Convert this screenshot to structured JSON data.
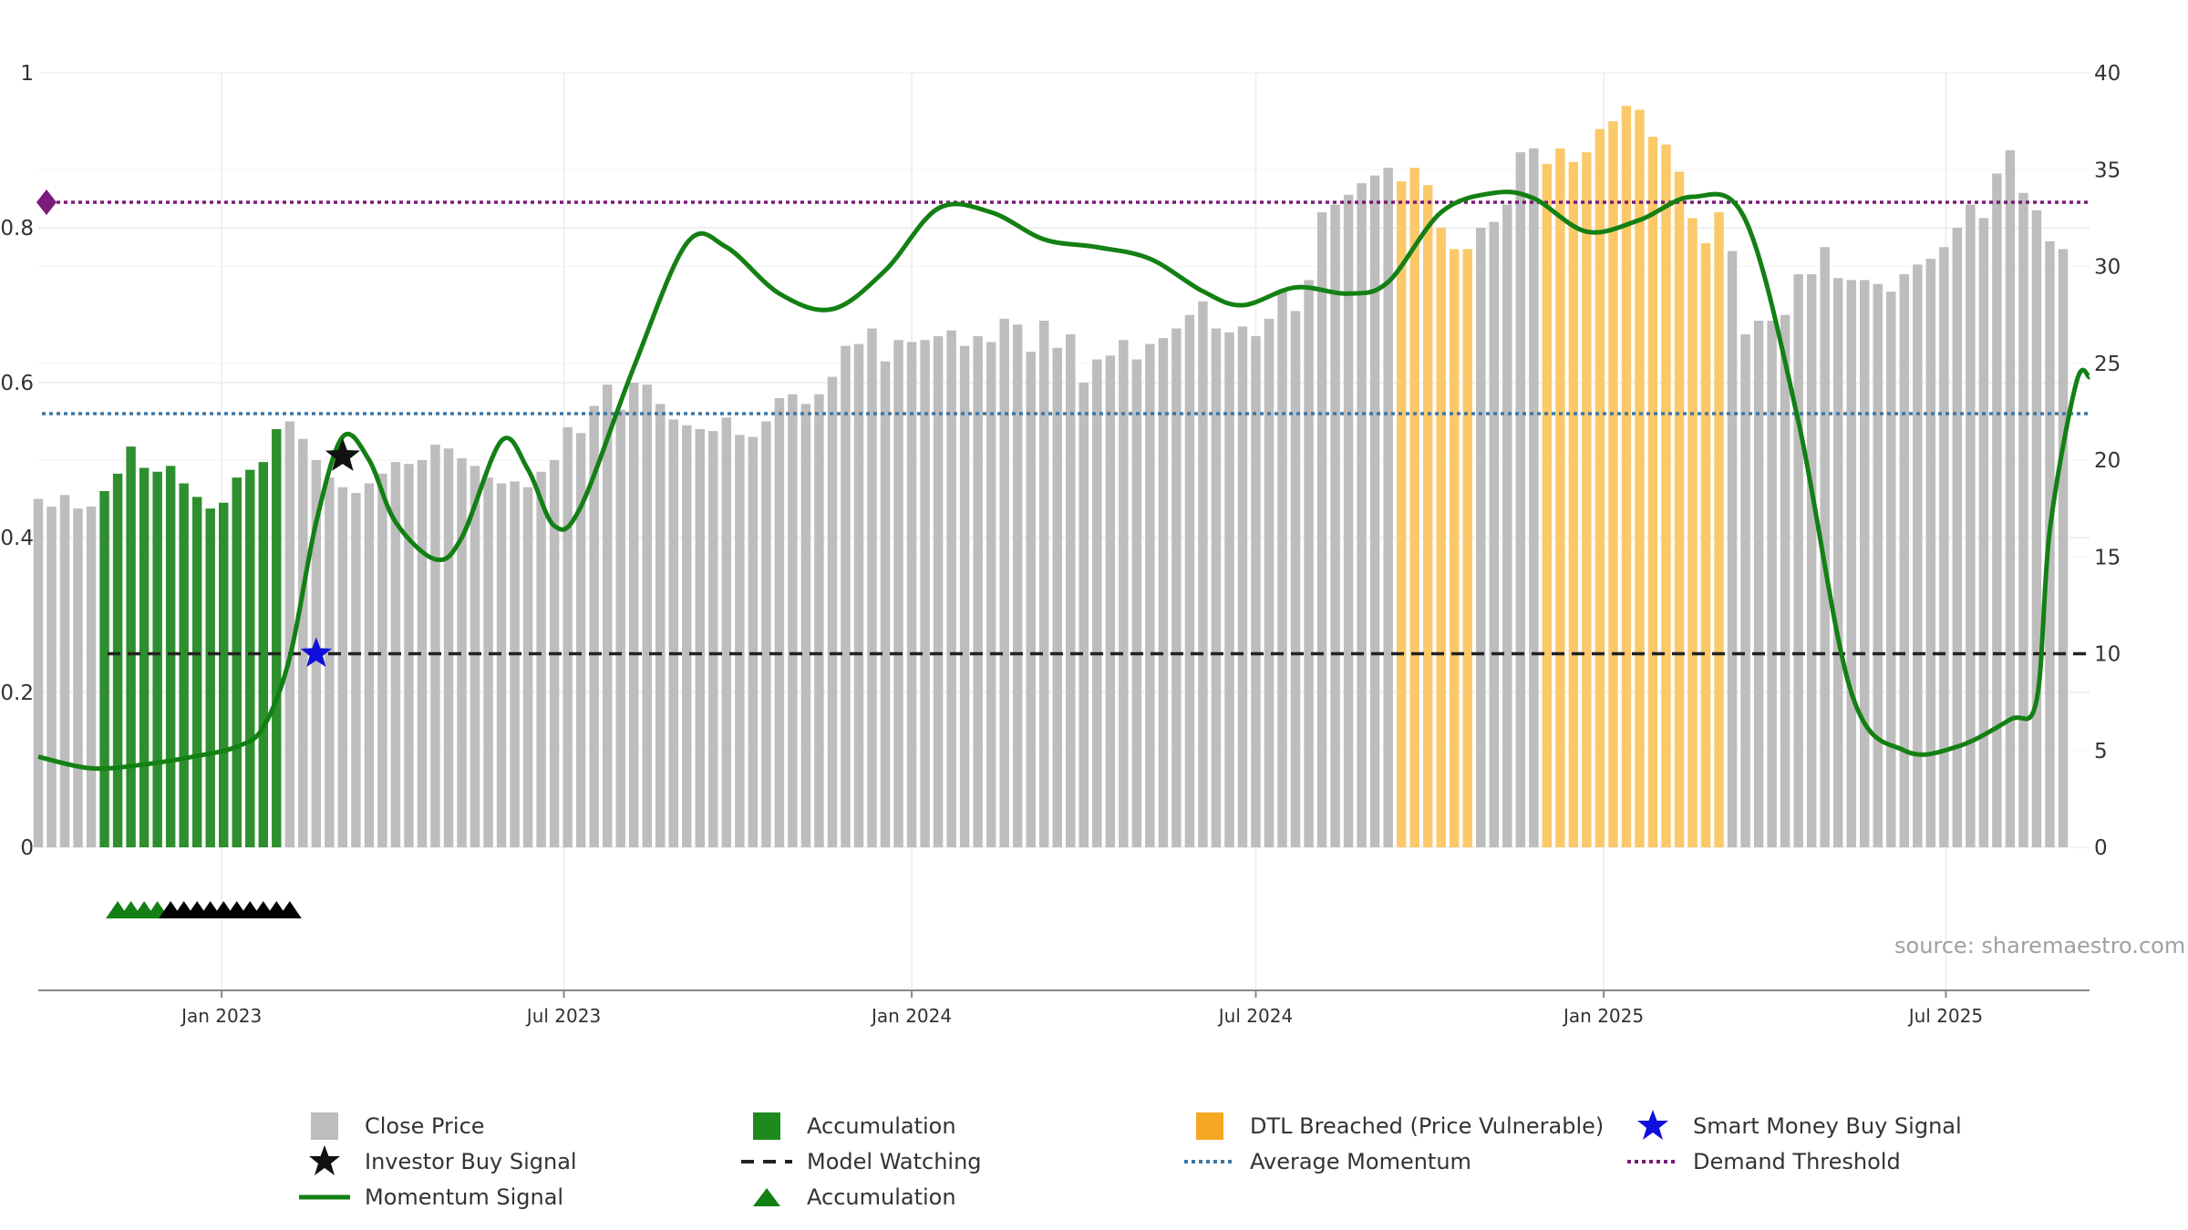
{
  "chart_data": {
    "type": "bar+line",
    "source": "source: sharemaestro.com",
    "left_axis": {
      "ylim": [
        0,
        1
      ],
      "ticks": [
        0,
        0.2,
        0.4,
        0.6,
        0.8,
        1
      ],
      "tick_labels": [
        "0",
        "0.2",
        "0.4",
        "0.6",
        "0.8",
        "1"
      ]
    },
    "right_axis": {
      "ylim": [
        0,
        40
      ],
      "ticks": [
        0,
        5,
        10,
        15,
        20,
        25,
        30,
        35,
        40
      ],
      "tick_labels": [
        "0",
        "5",
        "10",
        "15",
        "20",
        "25",
        "30",
        "35",
        "40"
      ]
    },
    "x_axis": {
      "range": [
        "2022-09-26",
        "2025-09-15"
      ],
      "ticks": [
        "2023-01-01",
        "2023-07-01",
        "2024-01-01",
        "2024-07-01",
        "2025-01-01",
        "2025-07-01"
      ],
      "tick_labels": [
        "Jan 2023",
        "Jul 2023",
        "Jan 2024",
        "Jul 2024",
        "Jan 2025",
        "Jul 2025"
      ]
    },
    "grid": true,
    "legend_position": "bottom",
    "bar_start_date": "2022-09-26",
    "bar_interval_days": 7,
    "close_price": [
      18.0,
      17.6,
      18.2,
      17.5,
      17.6,
      18.4,
      19.3,
      20.7,
      19.6,
      19.4,
      19.7,
      18.8,
      18.1,
      17.5,
      17.8,
      19.1,
      19.5,
      19.9,
      21.6,
      22.0,
      21.1,
      20.0,
      19.1,
      18.6,
      18.3,
      18.8,
      19.3,
      19.9,
      19.8,
      20.0,
      20.8,
      20.6,
      20.1,
      19.7,
      19.1,
      18.8,
      18.9,
      18.6,
      19.4,
      20.0,
      21.7,
      21.4,
      22.8,
      23.9,
      22.6,
      24.0,
      23.9,
      22.9,
      22.1,
      21.8,
      21.6,
      21.5,
      22.2,
      21.3,
      21.2,
      22.0,
      23.2,
      23.4,
      22.9,
      23.4,
      24.3,
      25.9,
      26.0,
      26.8,
      25.1,
      26.2,
      26.1,
      26.2,
      26.4,
      26.7,
      25.9,
      26.4,
      26.1,
      27.3,
      27.0,
      25.6,
      27.2,
      25.8,
      26.5,
      24.0,
      25.2,
      25.4,
      26.2,
      25.2,
      26.0,
      26.3,
      26.8,
      27.5,
      28.2,
      26.8,
      26.6,
      26.9,
      26.4,
      27.3,
      28.8,
      27.7,
      29.3,
      32.8,
      33.2,
      33.7,
      34.3,
      34.7,
      35.1,
      34.4,
      35.1,
      34.2,
      32.0,
      30.9,
      30.9,
      32.0,
      32.3,
      33.2,
      35.9,
      36.1,
      35.3,
      36.1,
      35.4,
      35.9,
      37.1,
      37.5,
      38.3,
      38.1,
      36.7,
      36.3,
      34.9,
      32.5,
      31.2,
      32.8,
      30.8,
      26.5,
      27.2,
      27.2,
      27.5,
      29.6,
      29.6,
      31.0,
      29.4,
      29.3,
      29.3,
      29.1,
      28.7,
      29.6,
      30.1,
      30.4,
      31.0,
      32.0,
      33.2,
      32.5,
      34.8,
      36.0,
      33.8,
      32.9,
      31.3,
      30.9
    ],
    "bar_categories": [
      "close",
      "close",
      "close",
      "close",
      "close",
      "accumulation",
      "accumulation",
      "accumulation",
      "accumulation",
      "accumulation",
      "accumulation",
      "accumulation",
      "accumulation",
      "accumulation",
      "accumulation",
      "accumulation",
      "accumulation",
      "accumulation",
      "accumulation",
      "close",
      "close",
      "close",
      "close",
      "close",
      "close",
      "close",
      "close",
      "close",
      "close",
      "close",
      "close",
      "close",
      "close",
      "close",
      "close",
      "close",
      "close",
      "close",
      "close",
      "close",
      "close",
      "close",
      "close",
      "close",
      "close",
      "close",
      "close",
      "close",
      "close",
      "close",
      "close",
      "close",
      "close",
      "close",
      "close",
      "close",
      "close",
      "close",
      "close",
      "close",
      "close",
      "close",
      "close",
      "close",
      "close",
      "close",
      "close",
      "close",
      "close",
      "close",
      "close",
      "close",
      "close",
      "close",
      "close",
      "close",
      "close",
      "close",
      "close",
      "close",
      "close",
      "close",
      "close",
      "close",
      "close",
      "close",
      "close",
      "close",
      "close",
      "close",
      "close",
      "close",
      "close",
      "close",
      "close",
      "close",
      "close",
      "close",
      "close",
      "close",
      "close",
      "close",
      "close",
      "dtl",
      "dtl",
      "dtl",
      "dtl",
      "dtl",
      "dtl",
      "close",
      "close",
      "close",
      "close",
      "close",
      "dtl",
      "dtl",
      "dtl",
      "dtl",
      "dtl",
      "dtl",
      "dtl",
      "dtl",
      "dtl",
      "dtl",
      "dtl",
      "dtl",
      "dtl",
      "dtl",
      "close",
      "close",
      "close",
      "close",
      "close",
      "close",
      "close",
      "close",
      "close",
      "close",
      "close",
      "close",
      "close",
      "close",
      "close",
      "close",
      "close",
      "close",
      "close",
      "close",
      "close",
      "close",
      "close",
      "close",
      "close",
      "close",
      "close",
      "dtl",
      "dtl",
      "dtl",
      "close",
      "close",
      "close"
    ],
    "momentum_signal": [
      [
        "2022-09-26",
        0.117
      ],
      [
        "2022-10-24",
        0.102
      ],
      [
        "2022-11-21",
        0.107
      ],
      [
        "2022-12-19",
        0.118
      ],
      [
        "2023-01-09",
        0.13
      ],
      [
        "2023-01-23",
        0.155
      ],
      [
        "2023-02-06",
        0.245
      ],
      [
        "2023-02-20",
        0.42
      ],
      [
        "2023-03-06",
        0.53
      ],
      [
        "2023-03-20",
        0.5
      ],
      [
        "2023-04-03",
        0.42
      ],
      [
        "2023-04-24",
        0.372
      ],
      [
        "2023-05-08",
        0.4
      ],
      [
        "2023-05-29",
        0.525
      ],
      [
        "2023-06-12",
        0.488
      ],
      [
        "2023-06-26",
        0.415
      ],
      [
        "2023-07-10",
        0.44
      ],
      [
        "2023-08-07",
        0.62
      ],
      [
        "2023-09-04",
        0.78
      ],
      [
        "2023-09-25",
        0.775
      ],
      [
        "2023-10-23",
        0.715
      ],
      [
        "2023-11-20",
        0.695
      ],
      [
        "2023-12-18",
        0.745
      ],
      [
        "2024-01-15",
        0.825
      ],
      [
        "2024-02-12",
        0.82
      ],
      [
        "2024-03-11",
        0.785
      ],
      [
        "2024-04-08",
        0.775
      ],
      [
        "2024-05-06",
        0.76
      ],
      [
        "2024-06-03",
        0.718
      ],
      [
        "2024-06-24",
        0.7
      ],
      [
        "2024-07-22",
        0.723
      ],
      [
        "2024-08-19",
        0.715
      ],
      [
        "2024-09-09",
        0.73
      ],
      [
        "2024-10-07",
        0.82
      ],
      [
        "2024-11-04",
        0.845
      ],
      [
        "2024-11-25",
        0.838
      ],
      [
        "2024-12-23",
        0.795
      ],
      [
        "2025-01-20",
        0.81
      ],
      [
        "2025-02-17",
        0.84
      ],
      [
        "2025-03-17",
        0.81
      ],
      [
        "2025-04-14",
        0.55
      ],
      [
        "2025-05-12",
        0.2
      ],
      [
        "2025-06-09",
        0.125
      ],
      [
        "2025-07-07",
        0.13
      ],
      [
        "2025-08-04",
        0.165
      ],
      [
        "2025-08-18",
        0.19
      ],
      [
        "2025-08-25",
        0.41
      ],
      [
        "2025-09-08",
        0.6
      ],
      [
        "2025-09-15",
        0.607
      ]
    ],
    "average_momentum": 0.56,
    "demand_threshold": 0.833,
    "model_watching": 0.25,
    "investor_buy_signals": [
      [
        "2023-03-06",
        0.505
      ]
    ],
    "smart_money_buy_signals": [
      [
        "2023-02-20",
        0.25
      ]
    ],
    "accumulation_markers": {
      "green": [
        "2022-11-07",
        "2022-11-14",
        "2022-11-21",
        "2022-11-28"
      ],
      "black": [
        "2022-12-05",
        "2022-12-12",
        "2022-12-19",
        "2022-12-26",
        "2023-01-02",
        "2023-01-09",
        "2023-01-16",
        "2023-01-23",
        "2023-01-30",
        "2023-02-06"
      ]
    },
    "legend": [
      {
        "label": "Close Price",
        "symbol": "square",
        "color": "#bdbdbd"
      },
      {
        "label": "Accumulation",
        "symbol": "square",
        "color": "#1e8a1e"
      },
      {
        "label": "DTL Breached (Price Vulnerable)",
        "symbol": "square",
        "color": "#f7a623"
      },
      {
        "label": "Smart Money Buy Signal",
        "symbol": "star",
        "color": "#1010dd"
      },
      {
        "label": "Investor Buy Signal",
        "symbol": "star",
        "color": "#111111"
      },
      {
        "label": "Model Watching",
        "symbol": "dash-line",
        "color": "#222222"
      },
      {
        "label": "Average Momentum",
        "symbol": "dot-line",
        "color": "#3b77a8"
      },
      {
        "label": "Demand Threshold",
        "symbol": "dot-line",
        "color": "#7a1a7a"
      },
      {
        "label": "Momentum Signal",
        "symbol": "solid-line",
        "color": "#138013"
      },
      {
        "label": "Accumulation",
        "symbol": "triangle",
        "color": "#138013"
      }
    ],
    "colors": {
      "close": "#bdbdbd",
      "accumulation": "#2e8f2e",
      "dtl": "#fbc96a",
      "momentum": "#138013",
      "average": "#3b77a8",
      "threshold": "#7a1a7a",
      "watching": "#222222",
      "grid": "#ececec",
      "axis": "#888888"
    }
  }
}
